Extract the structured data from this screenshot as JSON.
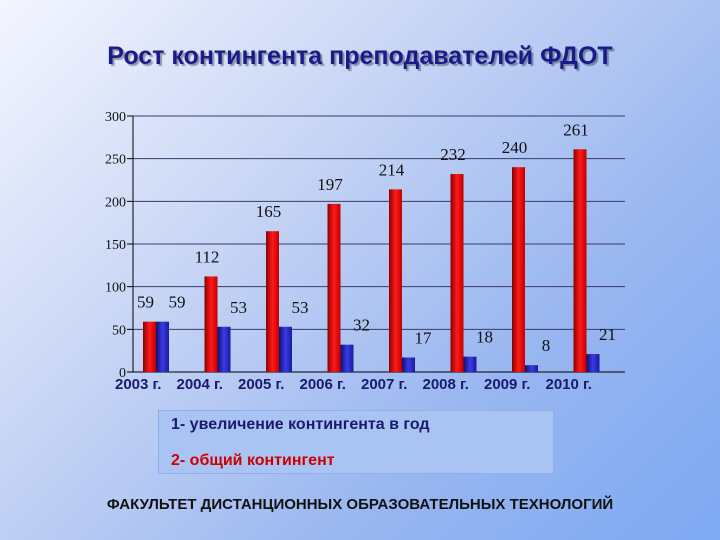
{
  "title": "Рост контингента преподавателей ФДОТ",
  "legend": {
    "item1": "1- увеличение контингента в год",
    "item2": "2- общий контингент"
  },
  "footer": "ФАКУЛЬТЕТ ДИСТАНЦИОННЫХ ОБРАЗОВАТЕЛЬНЫХ ТЕХНОЛОГИЙ",
  "colors": {
    "total": "#e01010",
    "increase": "#2a2ad0"
  },
  "chart_data": {
    "type": "bar",
    "categories": [
      "2003 г.",
      "2004 г.",
      "2005 г.",
      "2006 г.",
      "2007 г.",
      "2008 г.",
      "2009 г.",
      "2010 г."
    ],
    "series": [
      {
        "name": "2- общий контингент",
        "values": [
          59,
          112,
          165,
          197,
          214,
          232,
          240,
          261
        ]
      },
      {
        "name": "1- увеличение контингента в год",
        "values": [
          59,
          53,
          53,
          32,
          17,
          18,
          8,
          21
        ]
      }
    ],
    "yticks": [
      0,
      50,
      100,
      150,
      200,
      250,
      300
    ],
    "ylim": [
      0,
      300
    ],
    "grid": true
  }
}
